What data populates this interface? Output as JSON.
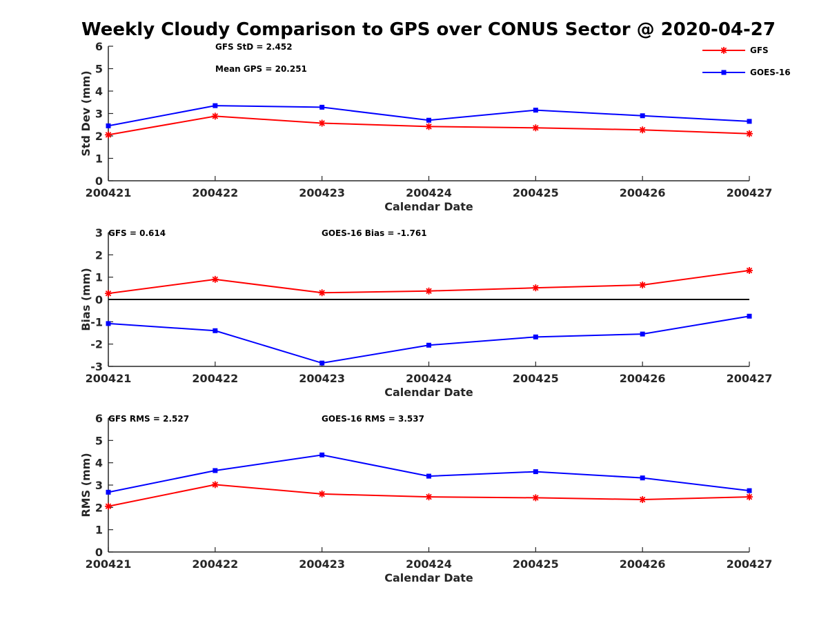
{
  "title": "Weekly Cloudy Comparison to GPS over CONUS Sector @ 2020-04-27",
  "colors": {
    "gfs": "#ff0000",
    "goes16": "#0000ff",
    "axis": "#262626",
    "zero_line": "#000000"
  },
  "legend": {
    "placement": "top-right",
    "items": [
      "GFS",
      "GOES-16"
    ]
  },
  "chart_data": [
    {
      "type": "line",
      "categories": [
        "200421",
        "200422",
        "200423",
        "200424",
        "200425",
        "200426",
        "200427"
      ],
      "xlabel": "Calendar Date",
      "ylabel": "Std Dev (mm)",
      "ylim": [
        0,
        6
      ],
      "yticks": [
        "0",
        "1",
        "2",
        "3",
        "4",
        "5",
        "6"
      ],
      "annotations": [
        "GFS StD = 2.452",
        "Mean GPS = 20.251"
      ],
      "series": [
        {
          "name": "GFS",
          "marker": "asterisk",
          "values": [
            2.05,
            2.88,
            2.57,
            2.42,
            2.36,
            2.27,
            2.1
          ]
        },
        {
          "name": "GOES-16",
          "marker": "square",
          "values": [
            2.45,
            3.35,
            3.28,
            2.7,
            3.15,
            2.9,
            2.65
          ]
        }
      ]
    },
    {
      "type": "line",
      "categories": [
        "200421",
        "200422",
        "200423",
        "200424",
        "200425",
        "200426",
        "200427"
      ],
      "xlabel": "Calendar Date",
      "ylabel": "Bias (mm)",
      "ylim": [
        -3,
        3
      ],
      "yticks": [
        "-3",
        "-2",
        "-1",
        "0",
        "1",
        "2",
        "3"
      ],
      "zero_line": true,
      "annotations": [
        "GFS = 0.614",
        "GOES-16 Bias  = -1.761"
      ],
      "series": [
        {
          "name": "GFS",
          "marker": "asterisk",
          "values": [
            0.27,
            0.9,
            0.3,
            0.38,
            0.52,
            0.65,
            1.3
          ]
        },
        {
          "name": "GOES-16",
          "marker": "square",
          "values": [
            -1.08,
            -1.4,
            -2.85,
            -2.05,
            -1.68,
            -1.55,
            -0.75
          ]
        }
      ]
    },
    {
      "type": "line",
      "categories": [
        "200421",
        "200422",
        "200423",
        "200424",
        "200425",
        "200426",
        "200427"
      ],
      "xlabel": "Calendar Date",
      "ylabel": "RMS (mm)",
      "ylim": [
        0,
        6
      ],
      "yticks": [
        "0",
        "1",
        "2",
        "3",
        "4",
        "5",
        "6"
      ],
      "annotations": [
        "GFS RMS = 2.527",
        "GOES-16 RMS = 3.537"
      ],
      "series": [
        {
          "name": "GFS",
          "marker": "asterisk",
          "values": [
            2.05,
            3.02,
            2.6,
            2.47,
            2.43,
            2.35,
            2.47
          ]
        },
        {
          "name": "GOES-16",
          "marker": "square",
          "values": [
            2.68,
            3.65,
            4.35,
            3.4,
            3.6,
            3.32,
            2.75
          ]
        }
      ]
    }
  ]
}
